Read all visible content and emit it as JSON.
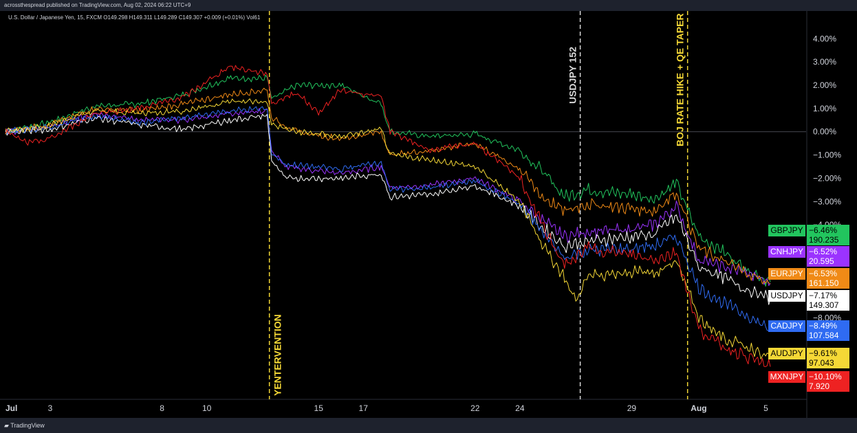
{
  "header": {
    "publish_text": "acrossthespread published on TradingView.com, Aug 02, 2024 06:22 UTC+9"
  },
  "ohlc": {
    "text": "U.S. Dollar / Japanese Yen, 15, FXCM  O149.298  H149.311  L149.289  C149.307  +0.009 (+0.01%)  Vol61"
  },
  "footer": {
    "brand": "TradingView"
  },
  "colors": {
    "GBPJPY": "#22c55e",
    "CNHJPY": "#9b33ff",
    "EURJPY": "#f08a16",
    "USDJPY": "#ffffff",
    "CADJPY": "#2f6bf2",
    "AUDJPY": "#f5d836",
    "MXNJPY": "#ee2222",
    "annotation": "#f5d836",
    "annotation_white": "#d7d7d7"
  },
  "chart_data": {
    "type": "line",
    "x_ticks": [
      "Jul",
      "3",
      "8",
      "10",
      "15",
      "17",
      "22",
      "24",
      "29",
      "Aug",
      "5"
    ],
    "x_tick_days": [
      1,
      3,
      8,
      10,
      15,
      17,
      22,
      24,
      29,
      32,
      35
    ],
    "x_range": [
      1,
      36.8
    ],
    "y_ticks": [
      "4.00%",
      "3.00%",
      "2.00%",
      "1.00%",
      "0.00%",
      "−1.00%",
      "−2.00%",
      "−3.00%",
      "−4.00%",
      "−8.00%"
    ],
    "y_tick_values": [
      4,
      3,
      2,
      1,
      0,
      -1,
      -2,
      -3,
      -4,
      -8
    ],
    "y_range": [
      -11.5,
      4.6
    ],
    "annotations": [
      {
        "label": "YENTERVENTION",
        "day": 12.8,
        "color": "yellow"
      },
      {
        "label": "USDJPY 152",
        "day": 26.7,
        "color": "white"
      },
      {
        "label": "BOJ RATE HIKE + QE TAPER",
        "day": 31.5,
        "color": "yellow"
      }
    ],
    "series": [
      {
        "name": "GBPJPY",
        "pct": "−6.46%",
        "price": "190.235",
        "end": -6.46,
        "points": [
          [
            1,
            0
          ],
          [
            3,
            0.4
          ],
          [
            5,
            1.1
          ],
          [
            7,
            1.2
          ],
          [
            9,
            1.6
          ],
          [
            11,
            2.3
          ],
          [
            12.7,
            2.3
          ],
          [
            12.9,
            1.4
          ],
          [
            14,
            2.0
          ],
          [
            16,
            2.0
          ],
          [
            17.8,
            1.2
          ],
          [
            18.2,
            0
          ],
          [
            20,
            -0.2
          ],
          [
            22,
            -0.1
          ],
          [
            24,
            -0.8
          ],
          [
            25,
            -1.7
          ],
          [
            26,
            -2.8
          ],
          [
            27,
            -2.5
          ],
          [
            29,
            -2.7
          ],
          [
            30,
            -2.9
          ],
          [
            31,
            -2.2
          ],
          [
            32,
            -4.5
          ],
          [
            33,
            -5.1
          ],
          [
            34,
            -5.8
          ],
          [
            35.2,
            -6.46
          ]
        ]
      },
      {
        "name": "CNHJPY",
        "pct": "−6.52%",
        "price": "20.595",
        "end": -6.52,
        "points": [
          [
            1,
            0
          ],
          [
            3,
            0.2
          ],
          [
            5,
            0.8
          ],
          [
            7,
            0.5
          ],
          [
            9,
            0.5
          ],
          [
            11,
            0.8
          ],
          [
            12.7,
            0.9
          ],
          [
            12.9,
            -0.8
          ],
          [
            13.5,
            -1.5
          ],
          [
            16,
            -1.8
          ],
          [
            17.8,
            -1.5
          ],
          [
            18.2,
            -2.4
          ],
          [
            20,
            -2.3
          ],
          [
            22,
            -2.0
          ],
          [
            24,
            -3.0
          ],
          [
            25,
            -3.8
          ],
          [
            26,
            -4.5
          ],
          [
            27,
            -4.3
          ],
          [
            29,
            -4.2
          ],
          [
            30,
            -4.0
          ],
          [
            31,
            -3.2
          ],
          [
            32,
            -5.5
          ],
          [
            33,
            -5.8
          ],
          [
            34,
            -6.0
          ],
          [
            35.2,
            -6.52
          ]
        ]
      },
      {
        "name": "EURJPY",
        "pct": "−6.53%",
        "price": "161.150",
        "end": -6.53,
        "points": [
          [
            1,
            0
          ],
          [
            3,
            0.3
          ],
          [
            5,
            1.0
          ],
          [
            7,
            0.9
          ],
          [
            9,
            1.2
          ],
          [
            11,
            1.6
          ],
          [
            12.7,
            1.8
          ],
          [
            12.9,
            0.6
          ],
          [
            14,
            0
          ],
          [
            16,
            -0.3
          ],
          [
            17.8,
            0
          ],
          [
            18.2,
            -1.0
          ],
          [
            20,
            -0.8
          ],
          [
            22,
            -0.5
          ],
          [
            24,
            -1.6
          ],
          [
            25,
            -2.8
          ],
          [
            26,
            -3.4
          ],
          [
            27,
            -3.1
          ],
          [
            29,
            -3.3
          ],
          [
            30,
            -3.4
          ],
          [
            31,
            -2.6
          ],
          [
            32,
            -5.0
          ],
          [
            33,
            -5.5
          ],
          [
            34,
            -6.0
          ],
          [
            35.2,
            -6.53
          ]
        ]
      },
      {
        "name": "USDJPY",
        "pct": "−7.17%",
        "price": "149.307",
        "end": -7.17,
        "points": [
          [
            1,
            0
          ],
          [
            3,
            0.1
          ],
          [
            5,
            0.6
          ],
          [
            7,
            0.3
          ],
          [
            9,
            0.1
          ],
          [
            11,
            0.5
          ],
          [
            12.7,
            0.7
          ],
          [
            12.9,
            -1.2
          ],
          [
            13.5,
            -2.0
          ],
          [
            16,
            -2.0
          ],
          [
            17.8,
            -1.8
          ],
          [
            18.2,
            -2.8
          ],
          [
            20,
            -2.7
          ],
          [
            22,
            -2.3
          ],
          [
            24,
            -3.2
          ],
          [
            25,
            -4.1
          ],
          [
            26,
            -4.9
          ],
          [
            27,
            -4.7
          ],
          [
            29,
            -4.5
          ],
          [
            30,
            -4.4
          ],
          [
            31,
            -3.6
          ],
          [
            32,
            -5.8
          ],
          [
            33,
            -6.2
          ],
          [
            34,
            -6.7
          ],
          [
            35.2,
            -7.17
          ]
        ]
      },
      {
        "name": "CADJPY",
        "pct": "−8.49%",
        "price": "107.584",
        "end": -8.49,
        "points": [
          [
            1,
            0
          ],
          [
            3,
            0.2
          ],
          [
            5,
            0.7
          ],
          [
            7,
            0.4
          ],
          [
            9,
            0.6
          ],
          [
            11,
            0.9
          ],
          [
            12.7,
            1.0
          ],
          [
            12.9,
            -0.9
          ],
          [
            13.5,
            -1.4
          ],
          [
            16,
            -1.6
          ],
          [
            17.8,
            -1.3
          ],
          [
            18.2,
            -2.5
          ],
          [
            20,
            -2.4
          ],
          [
            22,
            -2.1
          ],
          [
            24,
            -3.1
          ],
          [
            25,
            -4.3
          ],
          [
            26,
            -5.4
          ],
          [
            27,
            -5.1
          ],
          [
            29,
            -5.0
          ],
          [
            30,
            -4.9
          ],
          [
            31,
            -4.5
          ],
          [
            32,
            -6.7
          ],
          [
            33,
            -7.3
          ],
          [
            34,
            -7.8
          ],
          [
            35.2,
            -8.49
          ]
        ]
      },
      {
        "name": "AUDJPY",
        "pct": "−9.61%",
        "price": "97.043",
        "end": -9.61,
        "points": [
          [
            1,
            0
          ],
          [
            3,
            0.3
          ],
          [
            5,
            0.9
          ],
          [
            7,
            0.8
          ],
          [
            9,
            0.9
          ],
          [
            11,
            1.3
          ],
          [
            12.7,
            1.3
          ],
          [
            12.9,
            0.3
          ],
          [
            14,
            0.0
          ],
          [
            16,
            -0.2
          ],
          [
            17.8,
            0.1
          ],
          [
            18.2,
            -1.0
          ],
          [
            20,
            -1.2
          ],
          [
            22,
            -1.5
          ],
          [
            24,
            -3.0
          ],
          [
            25,
            -4.8
          ],
          [
            26,
            -6.3
          ],
          [
            26.5,
            -7.3
          ],
          [
            27,
            -6.2
          ],
          [
            29,
            -6.0
          ],
          [
            30,
            -6.1
          ],
          [
            31,
            -5.5
          ],
          [
            32,
            -8.0
          ],
          [
            33,
            -8.8
          ],
          [
            34,
            -9.2
          ],
          [
            35.2,
            -9.61
          ]
        ]
      },
      {
        "name": "MXNJPY",
        "pct": "−10.10%",
        "price": "7.920",
        "end": -10.1,
        "points": [
          [
            1,
            0
          ],
          [
            2,
            -0.5
          ],
          [
            3,
            -0.3
          ],
          [
            5,
            0.8
          ],
          [
            7,
            1.0
          ],
          [
            9,
            1.5
          ],
          [
            11,
            2.8
          ],
          [
            12.7,
            2.5
          ],
          [
            12.9,
            1.2
          ],
          [
            14,
            1.7
          ],
          [
            15,
            0.8
          ],
          [
            16,
            1.8
          ],
          [
            17.8,
            1.5
          ],
          [
            18.2,
            0
          ],
          [
            20,
            -0.8
          ],
          [
            22,
            -0.5
          ],
          [
            24,
            -2.0
          ],
          [
            25,
            -4.0
          ],
          [
            26,
            -5.8
          ],
          [
            27,
            -5.0
          ],
          [
            29,
            -5.3
          ],
          [
            30,
            -5.5
          ],
          [
            31,
            -5.2
          ],
          [
            32,
            -8.5
          ],
          [
            33,
            -9.2
          ],
          [
            34,
            -9.6
          ],
          [
            35.2,
            -10.1
          ]
        ]
      }
    ]
  }
}
